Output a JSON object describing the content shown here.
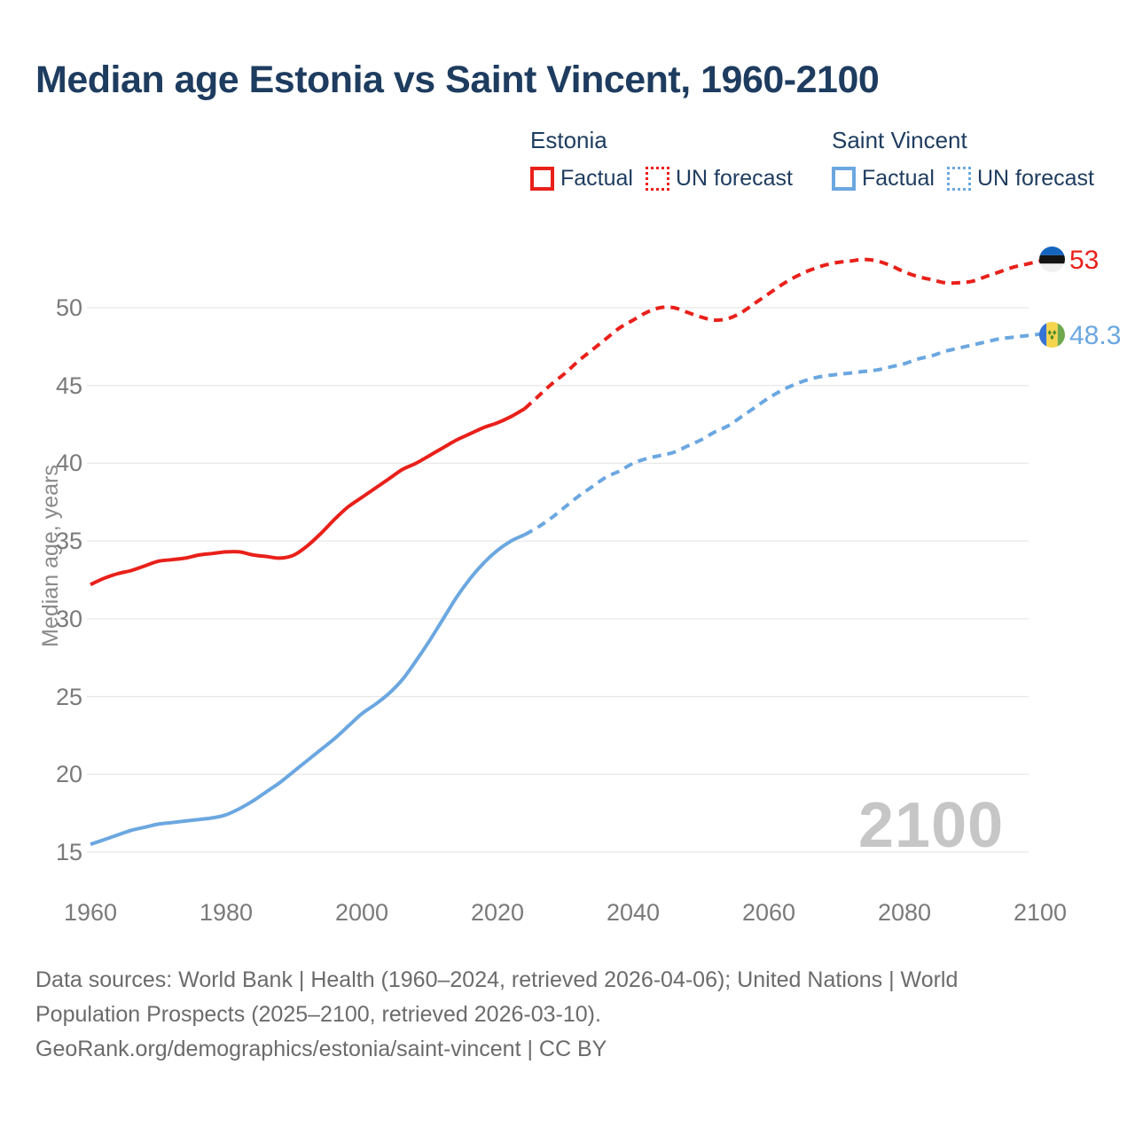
{
  "title": "Median age Estonia vs Saint Vincent, 1960-2100",
  "legend": {
    "groups": [
      {
        "title": "Estonia",
        "color": "#e9201a",
        "factual_label": "Factual",
        "forecast_label": "UN forecast"
      },
      {
        "title": "Saint Vincent",
        "color": "#6ba7e0",
        "factual_label": "Factual",
        "forecast_label": "UN forecast"
      }
    ]
  },
  "chart_data": {
    "type": "line",
    "title": "Median age Estonia vs Saint Vincent, 1960-2100",
    "xlabel": "",
    "ylabel": "Median age, years",
    "xlim": [
      1960,
      2100
    ],
    "ylim": [
      15,
      53.5
    ],
    "grid": "horizontal",
    "watermark": "2100",
    "x_ticks": [
      1960,
      1980,
      2000,
      2020,
      2040,
      2060,
      2080,
      2100
    ],
    "y_ticks": [
      15,
      20,
      25,
      30,
      35,
      40,
      45,
      50
    ],
    "series": [
      {
        "name": "Estonia Factual",
        "slug": "estonia-factual-line",
        "color": "#e9201a",
        "style": "solid",
        "points": [
          [
            1960,
            32.2
          ],
          [
            1962,
            32.6
          ],
          [
            1964,
            32.9
          ],
          [
            1966,
            33.1
          ],
          [
            1968,
            33.4
          ],
          [
            1970,
            33.7
          ],
          [
            1972,
            33.8
          ],
          [
            1974,
            33.9
          ],
          [
            1976,
            34.1
          ],
          [
            1978,
            34.2
          ],
          [
            1980,
            34.3
          ],
          [
            1982,
            34.3
          ],
          [
            1984,
            34.1
          ],
          [
            1986,
            34.0
          ],
          [
            1988,
            33.9
          ],
          [
            1990,
            34.1
          ],
          [
            1992,
            34.7
          ],
          [
            1994,
            35.5
          ],
          [
            1996,
            36.4
          ],
          [
            1998,
            37.2
          ],
          [
            2000,
            37.8
          ],
          [
            2002,
            38.4
          ],
          [
            2004,
            39.0
          ],
          [
            2006,
            39.6
          ],
          [
            2008,
            40.0
          ],
          [
            2010,
            40.5
          ],
          [
            2012,
            41.0
          ],
          [
            2014,
            41.5
          ],
          [
            2016,
            41.9
          ],
          [
            2018,
            42.3
          ],
          [
            2020,
            42.6
          ],
          [
            2022,
            43.0
          ],
          [
            2024,
            43.5
          ]
        ]
      },
      {
        "name": "Estonia UN forecast",
        "slug": "estonia-forecast-line",
        "color": "#e9201a",
        "style": "dashed",
        "points": [
          [
            2024,
            43.5
          ],
          [
            2026,
            44.3
          ],
          [
            2028,
            45.1
          ],
          [
            2030,
            45.8
          ],
          [
            2032,
            46.6
          ],
          [
            2034,
            47.3
          ],
          [
            2036,
            48.0
          ],
          [
            2038,
            48.7
          ],
          [
            2040,
            49.2
          ],
          [
            2042,
            49.7
          ],
          [
            2044,
            50.0
          ],
          [
            2046,
            50.0
          ],
          [
            2048,
            49.7
          ],
          [
            2050,
            49.4
          ],
          [
            2052,
            49.2
          ],
          [
            2054,
            49.3
          ],
          [
            2056,
            49.7
          ],
          [
            2058,
            50.3
          ],
          [
            2060,
            50.9
          ],
          [
            2062,
            51.5
          ],
          [
            2064,
            52.0
          ],
          [
            2066,
            52.4
          ],
          [
            2068,
            52.7
          ],
          [
            2070,
            52.9
          ],
          [
            2072,
            53.0
          ],
          [
            2074,
            53.1
          ],
          [
            2076,
            53.0
          ],
          [
            2078,
            52.7
          ],
          [
            2080,
            52.3
          ],
          [
            2082,
            52.0
          ],
          [
            2084,
            51.8
          ],
          [
            2086,
            51.6
          ],
          [
            2088,
            51.6
          ],
          [
            2090,
            51.7
          ],
          [
            2092,
            52.0
          ],
          [
            2094,
            52.3
          ],
          [
            2096,
            52.6
          ],
          [
            2098,
            52.8
          ],
          [
            2100,
            53.0
          ]
        ]
      },
      {
        "name": "Saint Vincent Factual",
        "slug": "saint-vincent-factual-line",
        "color": "#6ba7e0",
        "style": "solid",
        "points": [
          [
            1960,
            15.5
          ],
          [
            1962,
            15.8
          ],
          [
            1964,
            16.1
          ],
          [
            1966,
            16.4
          ],
          [
            1968,
            16.6
          ],
          [
            1970,
            16.8
          ],
          [
            1972,
            16.9
          ],
          [
            1974,
            17.0
          ],
          [
            1976,
            17.1
          ],
          [
            1978,
            17.2
          ],
          [
            1980,
            17.4
          ],
          [
            1982,
            17.8
          ],
          [
            1984,
            18.3
          ],
          [
            1986,
            18.9
          ],
          [
            1988,
            19.5
          ],
          [
            1990,
            20.2
          ],
          [
            1992,
            20.9
          ],
          [
            1994,
            21.6
          ],
          [
            1996,
            22.3
          ],
          [
            1998,
            23.1
          ],
          [
            2000,
            23.9
          ],
          [
            2002,
            24.5
          ],
          [
            2004,
            25.2
          ],
          [
            2006,
            26.1
          ],
          [
            2008,
            27.3
          ],
          [
            2010,
            28.6
          ],
          [
            2012,
            30.0
          ],
          [
            2014,
            31.4
          ],
          [
            2016,
            32.6
          ],
          [
            2018,
            33.6
          ],
          [
            2020,
            34.4
          ],
          [
            2022,
            35.0
          ],
          [
            2024,
            35.4
          ]
        ]
      },
      {
        "name": "Saint Vincent UN forecast",
        "slug": "saint-vincent-forecast-line",
        "color": "#6ba7e0",
        "style": "dashed",
        "points": [
          [
            2024,
            35.4
          ],
          [
            2026,
            35.9
          ],
          [
            2028,
            36.5
          ],
          [
            2030,
            37.2
          ],
          [
            2032,
            37.9
          ],
          [
            2034,
            38.5
          ],
          [
            2036,
            39.1
          ],
          [
            2038,
            39.5
          ],
          [
            2040,
            40.0
          ],
          [
            2042,
            40.3
          ],
          [
            2044,
            40.5
          ],
          [
            2046,
            40.7
          ],
          [
            2048,
            41.1
          ],
          [
            2050,
            41.5
          ],
          [
            2052,
            42.0
          ],
          [
            2054,
            42.4
          ],
          [
            2056,
            43.0
          ],
          [
            2058,
            43.6
          ],
          [
            2060,
            44.2
          ],
          [
            2062,
            44.7
          ],
          [
            2064,
            45.1
          ],
          [
            2066,
            45.4
          ],
          [
            2068,
            45.6
          ],
          [
            2070,
            45.7
          ],
          [
            2072,
            45.8
          ],
          [
            2074,
            45.9
          ],
          [
            2076,
            46.0
          ],
          [
            2078,
            46.2
          ],
          [
            2080,
            46.4
          ],
          [
            2082,
            46.7
          ],
          [
            2084,
            46.9
          ],
          [
            2086,
            47.2
          ],
          [
            2088,
            47.4
          ],
          [
            2090,
            47.6
          ],
          [
            2092,
            47.8
          ],
          [
            2094,
            48.0
          ],
          [
            2096,
            48.1
          ],
          [
            2098,
            48.2
          ],
          [
            2100,
            48.3
          ]
        ]
      }
    ],
    "end_labels": [
      {
        "series": "Estonia",
        "value": "53",
        "flag": "estonia-flag",
        "color": "#e9201a"
      },
      {
        "series": "Saint Vincent",
        "value": "48.3",
        "flag": "saint-vincent-flag",
        "color": "#6ba7e0"
      }
    ]
  },
  "footer": {
    "line1": "Data sources: World Bank | Health (1960–2024, retrieved 2026-04-06); United Nations | World",
    "line2": "Population Prospects (2025–2100, retrieved 2026-03-10).",
    "line3": "GeoRank.org/demographics/estonia/saint-vincent | CC BY"
  }
}
